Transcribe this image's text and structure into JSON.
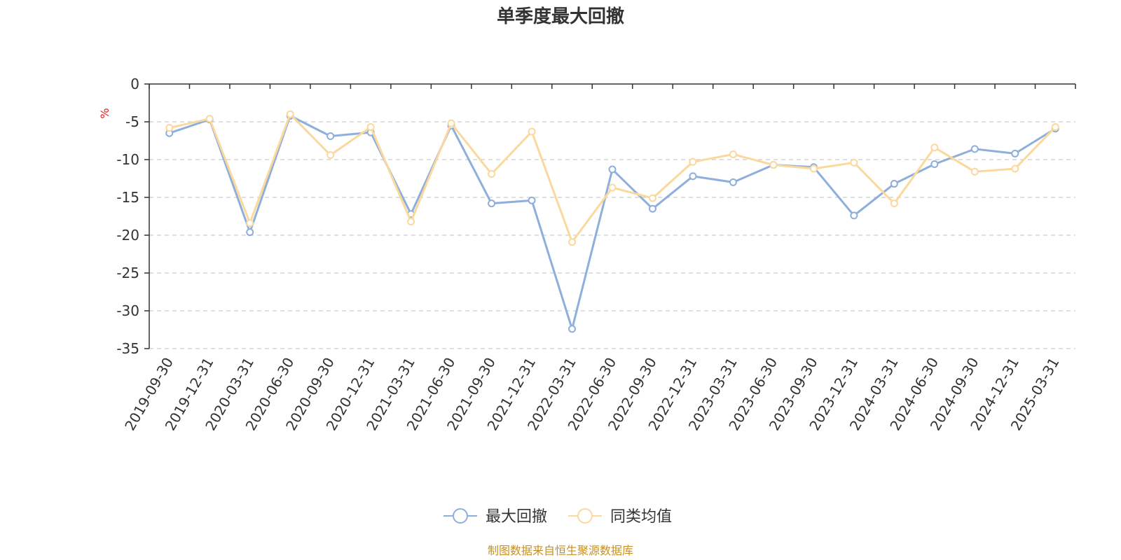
{
  "chart_data": {
    "type": "line",
    "title": "单季度最大回撤",
    "ylabel": "%",
    "ylim": [
      -35,
      0
    ],
    "yticks": [
      0,
      -5,
      -10,
      -15,
      -20,
      -25,
      -30,
      -35
    ],
    "grid": true,
    "legend_position": "bottom",
    "categories": [
      "2019-09-30",
      "2019-12-31",
      "2020-03-31",
      "2020-06-30",
      "2020-09-30",
      "2020-12-31",
      "2021-03-31",
      "2021-06-30",
      "2021-09-30",
      "2021-12-31",
      "2022-03-31",
      "2022-06-30",
      "2022-09-30",
      "2022-12-31",
      "2023-03-31",
      "2023-06-30",
      "2023-09-30",
      "2023-12-31",
      "2024-03-31",
      "2024-06-30",
      "2024-09-30",
      "2024-12-31",
      "2025-03-31"
    ],
    "series": [
      {
        "name": "最大回撤",
        "color": "#8eaedb",
        "values": [
          -6.5,
          -4.7,
          -19.6,
          -4.2,
          -6.9,
          -6.4,
          -17.2,
          -5.5,
          -15.8,
          -15.4,
          -32.4,
          -11.3,
          -16.5,
          -12.2,
          -13.0,
          -10.7,
          -11.0,
          -17.4,
          -13.2,
          -10.6,
          -8.6,
          -9.2,
          -5.9
        ]
      },
      {
        "name": "同类均值",
        "color": "#fbd89c",
        "values": [
          -5.8,
          -4.6,
          -18.4,
          -4.0,
          -9.4,
          -5.7,
          -18.2,
          -5.2,
          -11.9,
          -6.3,
          -20.9,
          -13.7,
          -15.1,
          -10.3,
          -9.3,
          -10.7,
          -11.2,
          -10.4,
          -15.8,
          -8.4,
          -11.6,
          -11.2,
          -5.7
        ]
      }
    ]
  },
  "footer": {
    "source": "制图数据来自恒生聚源数据库"
  }
}
